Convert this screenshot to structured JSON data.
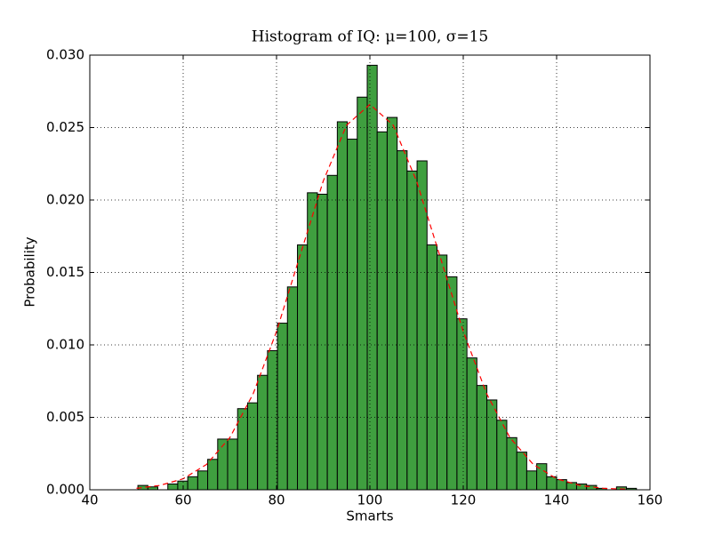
{
  "chart_data": {
    "type": "histogram",
    "title": "Histogram of IQ: μ=100, σ=15",
    "x_label": "Smarts",
    "y_label": "Probability",
    "color": "#3f9f3f",
    "bins": [
      50.3,
      52.44,
      54.57,
      56.71,
      58.84,
      60.98,
      63.12,
      65.25,
      67.39,
      69.52,
      71.66,
      73.8,
      75.93,
      78.07,
      80.2,
      82.34,
      84.48,
      86.61,
      88.75,
      90.88,
      93.02,
      95.16,
      97.29,
      99.43,
      101.56,
      103.7,
      105.84,
      107.97,
      110.11,
      112.24,
      114.38,
      116.52,
      118.65,
      120.79,
      122.92,
      125.06,
      127.2,
      129.33,
      131.47,
      133.6,
      135.74,
      137.88,
      140.01,
      142.15,
      144.28,
      146.42,
      148.56,
      150.69,
      152.83,
      154.96,
      157.1
    ],
    "values": [
      0.0003,
      0.0002,
      0,
      0.0004,
      0.0006,
      0.0009,
      0.0013,
      0.0021,
      0.0035,
      0.0035,
      0.0056,
      0.006,
      0.0079,
      0.0096,
      0.0115,
      0.014,
      0.0169,
      0.0205,
      0.0204,
      0.0217,
      0.0254,
      0.0242,
      0.0271,
      0.0293,
      0.0247,
      0.0257,
      0.0234,
      0.022,
      0.0227,
      0.0169,
      0.0162,
      0.0147,
      0.0118,
      0.0091,
      0.0072,
      0.0062,
      0.0048,
      0.0036,
      0.0026,
      0.0013,
      0.0018,
      0.0009,
      0.0007,
      0.0005,
      0.0004,
      0.0003,
      0.0001,
      0,
      0.0002,
      0.0001
    ],
    "fit": {
      "color": "#ff0000",
      "x": [
        50,
        55,
        60,
        65,
        70,
        75,
        80,
        85,
        90,
        95,
        100,
        105,
        110,
        115,
        120,
        125,
        130,
        135,
        140,
        145,
        150,
        155
      ],
      "values": [
        0.0001,
        0.0003,
        0.00076,
        0.00175,
        0.0036,
        0.00663,
        0.01093,
        0.01613,
        0.0213,
        0.02516,
        0.0266,
        0.02516,
        0.0213,
        0.01613,
        0.01093,
        0.00663,
        0.0036,
        0.00175,
        0.00076,
        0.0003,
        0.0001,
        4e-05
      ]
    },
    "xlim": [
      40,
      160
    ],
    "xticks": [
      40,
      60,
      80,
      100,
      120,
      140,
      160
    ],
    "ylim": [
      0,
      0.03
    ],
    "yticks": [
      {
        "value": 0,
        "label": "0.000"
      },
      {
        "value": 0.005,
        "label": "0.005"
      },
      {
        "value": 0.01,
        "label": "0.010"
      },
      {
        "value": 0.015,
        "label": "0.015"
      },
      {
        "value": 0.02,
        "label": "0.020"
      },
      {
        "value": 0.025,
        "label": "0.025"
      },
      {
        "value": 0.03,
        "label": "0.030"
      }
    ],
    "grid": true
  }
}
